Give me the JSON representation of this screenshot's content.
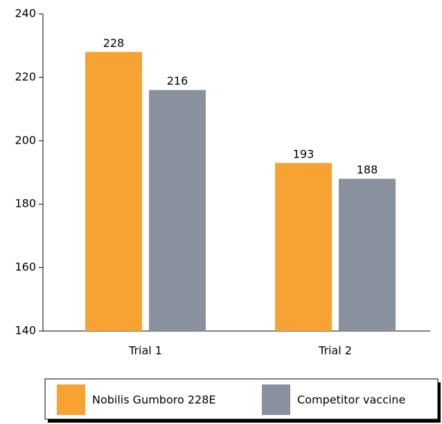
{
  "chart_data": {
    "type": "bar",
    "categories": [
      "Trial 1",
      "Trial 2"
    ],
    "series": [
      {
        "name": "Nobilis Gumboro 228E",
        "color": "#f7a334",
        "values": [
          228,
          193
        ]
      },
      {
        "name": "Competitor vaccine",
        "color": "#8a919e",
        "values": [
          216,
          188
        ]
      }
    ],
    "ylim": [
      140,
      240
    ],
    "yticks": [
      140,
      160,
      180,
      200,
      220,
      240
    ],
    "grid": false,
    "legend": "bottom"
  }
}
